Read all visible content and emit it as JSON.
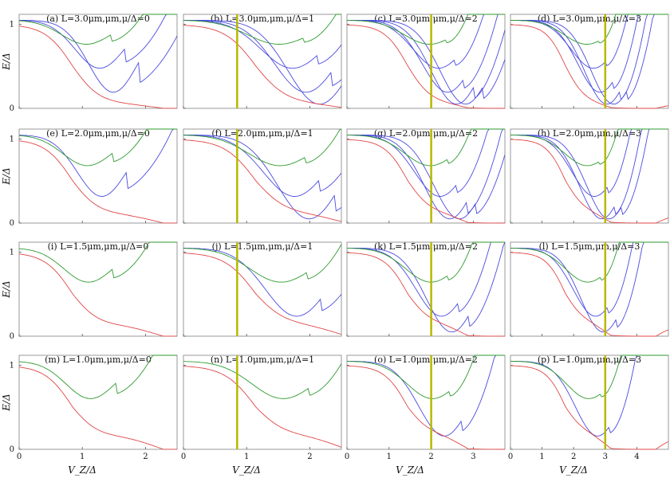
{
  "chart_data": {
    "type": "line",
    "grid": "4x4",
    "xlabel": "V_Z/Δ",
    "ylabel": "E/Δ",
    "y_ticks": [
      "0",
      "1"
    ],
    "x_ticks_axes12": [
      "0",
      "1",
      "2"
    ],
    "x_ticks_axes34": [
      "0",
      "1",
      "2",
      "3",
      "4"
    ],
    "colors": {
      "red": "#e04545",
      "green": "#2e9a2e",
      "blue": "#4a4ae0",
      "marker": "#b8b800",
      "frame": "#999999"
    },
    "panels": [
      {
        "title": "(a) L=3.0μm,μm,μ/Δ=0",
        "L": 3.0,
        "mu": 0,
        "xmax": 2.5
      },
      {
        "title": "(b) L=3.0μm,μm,μ/Δ=1",
        "L": 3.0,
        "mu": 1,
        "xmax": 2.5,
        "marker_x": 0.85
      },
      {
        "title": "(c) L=3.0μm,μm,μ/Δ=2",
        "L": 3.0,
        "mu": 2,
        "xmax": 3.75,
        "marker_x": 2.0
      },
      {
        "title": "(d) L=3.0μm,μm,μ/Δ=3",
        "L": 3.0,
        "mu": 3,
        "xmax": 5.0,
        "marker_x": 3.0
      },
      {
        "title": "(e) L=2.0μm,μm,μ/Δ=0",
        "L": 2.0,
        "mu": 0,
        "xmax": 2.5
      },
      {
        "title": "(f) L=2.0μm,μm,μ/Δ=1",
        "L": 2.0,
        "mu": 1,
        "xmax": 2.5,
        "marker_x": 0.85
      },
      {
        "title": "(g) L=2.0μm,μm,μ/Δ=2",
        "L": 2.0,
        "mu": 2,
        "xmax": 3.75,
        "marker_x": 2.0
      },
      {
        "title": "(h) L=2.0μm,μm,μ/Δ=3",
        "L": 2.0,
        "mu": 3,
        "xmax": 5.0,
        "marker_x": 3.0
      },
      {
        "title": "(i) L=1.5μm,μm,μ/Δ=0",
        "L": 1.5,
        "mu": 0,
        "xmax": 2.5
      },
      {
        "title": "(j) L=1.5μm,μm,μ/Δ=1",
        "L": 1.5,
        "mu": 1,
        "xmax": 2.5,
        "marker_x": 0.85
      },
      {
        "title": "(k) L=1.5μm,μm,μ/Δ=2",
        "L": 1.5,
        "mu": 2,
        "xmax": 3.75,
        "marker_x": 2.0
      },
      {
        "title": "(l) L=1.5μm,μm,μ/Δ=3",
        "L": 1.5,
        "mu": 3,
        "xmax": 5.0,
        "marker_x": 3.0
      },
      {
        "title": "(m) L=1.0μm,μm,μ/Δ=0",
        "L": 1.0,
        "mu": 0,
        "xmax": 2.5
      },
      {
        "title": "(n) L=1.0μm,μm,μ/Δ=1",
        "L": 1.0,
        "mu": 1,
        "xmax": 2.5,
        "marker_x": 0.85
      },
      {
        "title": "(o) L=1.0μm,μm,μ/Δ=2",
        "L": 1.0,
        "mu": 2,
        "xmax": 3.75,
        "marker_x": 2.0
      },
      {
        "title": "(p) L=1.0μm,μm,μ/Δ=3",
        "L": 1.0,
        "mu": 3,
        "xmax": 5.0,
        "marker_x": 3.0
      }
    ]
  }
}
